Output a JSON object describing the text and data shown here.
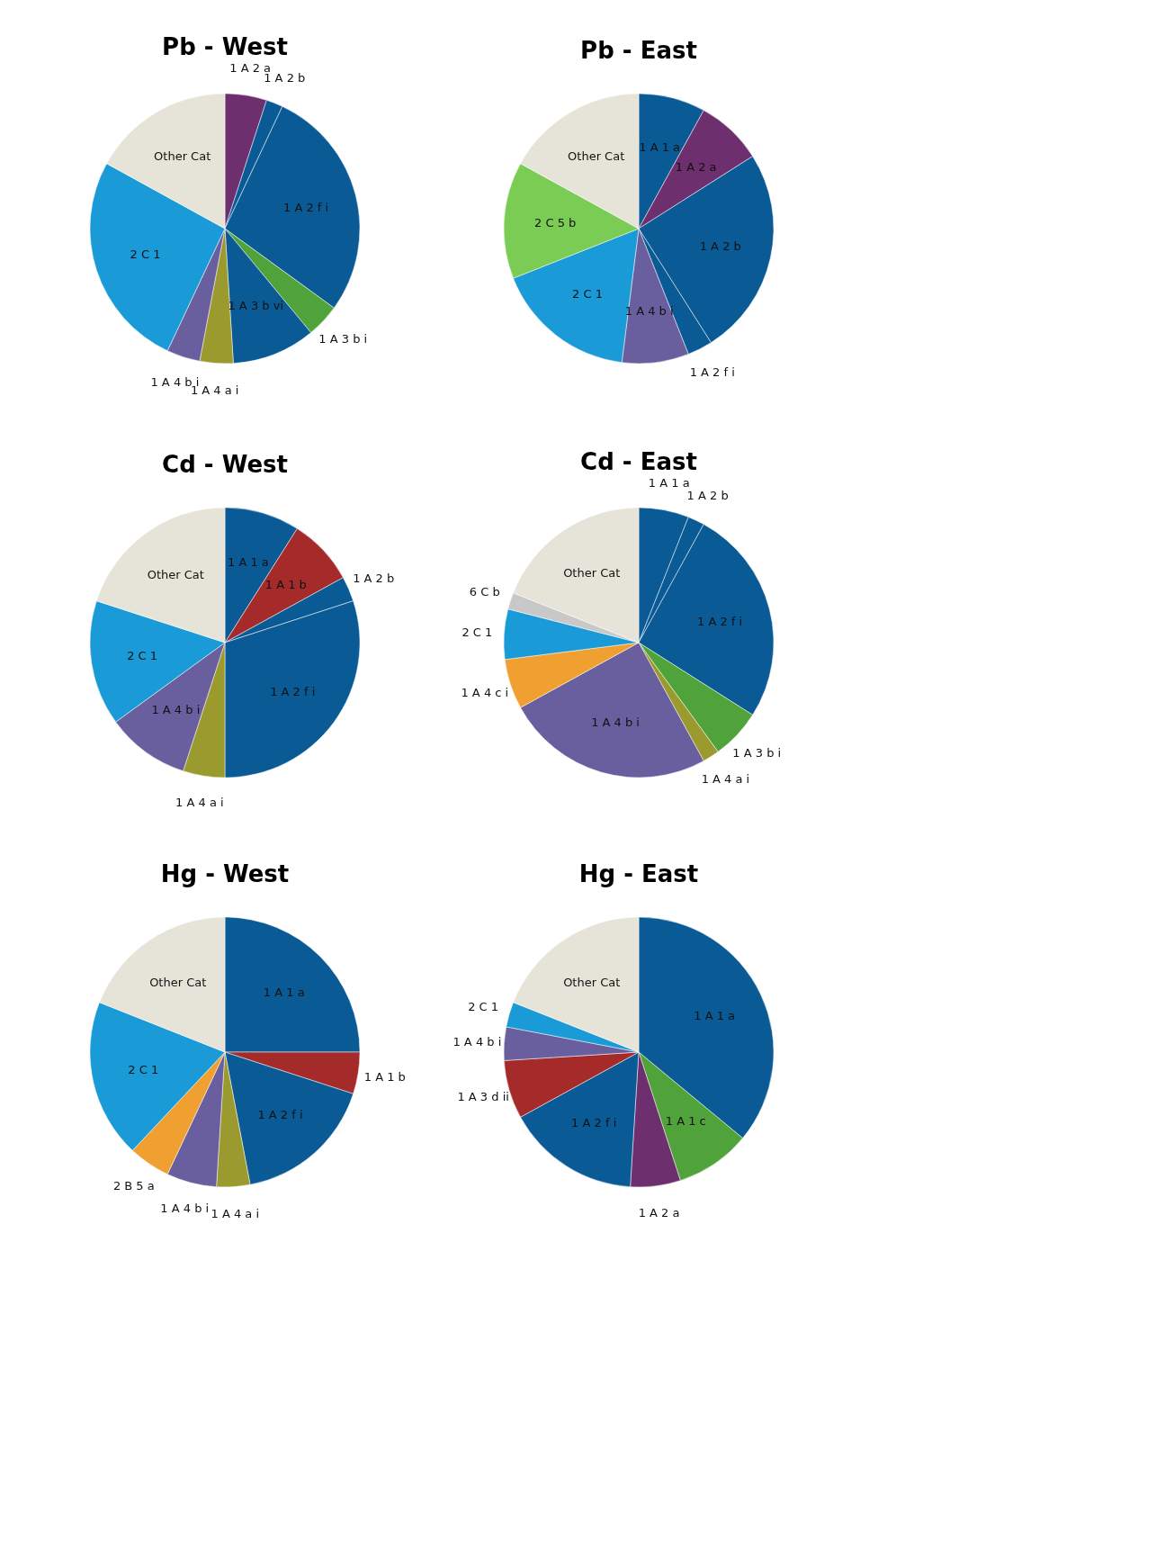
{
  "chart_data": [
    {
      "type": "pie",
      "title": "Pb - West",
      "categories": [
        "1 A 2 a",
        "1 A 2 b",
        "1 A 2 f i",
        "1 A 3 b i",
        "1 A 3 b vi",
        "1 A 4 a i",
        "1 A 4 b i",
        "2 C 1",
        "Other Cat"
      ],
      "values": [
        5,
        2,
        28,
        4,
        10,
        4,
        4,
        26,
        17
      ],
      "colors": [
        "#6e2f6e",
        "#0a5a96",
        "#0a5a96",
        "#4fa33a",
        "#0a5a96",
        "#9a9a2e",
        "#6a5f9e",
        "#1a9ad6",
        "#e6e4d8"
      ]
    },
    {
      "type": "pie",
      "title": "Pb - East",
      "categories": [
        "1 A 1 a",
        "1 A 2 a",
        "1 A 2 b",
        "1 A 2 f i",
        "1 A 4 b i",
        "2 C 1",
        "2 C 5 b",
        "Other Cat"
      ],
      "values": [
        8,
        8,
        25,
        3,
        8,
        17,
        14,
        17
      ],
      "colors": [
        "#0a5a96",
        "#6e2f6e",
        "#0a5a96",
        "#0a5a96",
        "#6a5f9e",
        "#1a9ad6",
        "#7acc55",
        "#e6e4d8"
      ]
    },
    {
      "type": "pie",
      "title": "Cd - West",
      "categories": [
        "1 A 1 a",
        "1 A 1 b",
        "1 A 2 b",
        "1 A 2 f i",
        "1 A 4 a i",
        "1 A 4 b i",
        "2 C 1",
        "Other Cat"
      ],
      "values": [
        9,
        8,
        3,
        30,
        5,
        10,
        15,
        20
      ],
      "colors": [
        "#0a5a96",
        "#a52a2a",
        "#0a5a96",
        "#0a5a96",
        "#9a9a2e",
        "#6a5f9e",
        "#1a9ad6",
        "#e6e4d8"
      ]
    },
    {
      "type": "pie",
      "title": "Cd - East",
      "categories": [
        "1 A 1 a",
        "1 A 2 b",
        "1 A 2 f i",
        "1 A 3 b i",
        "1 A 4 a i",
        "1 A 4 b i",
        "1 A 4 c i",
        "2 C 1",
        "6 C b",
        "Other Cat"
      ],
      "values": [
        6,
        2,
        26,
        6,
        2,
        25,
        6,
        6,
        2,
        19
      ],
      "colors": [
        "#0a5a96",
        "#0a5a96",
        "#0a5a96",
        "#4fa33a",
        "#9a9a2e",
        "#6a5f9e",
        "#f0a030",
        "#1a9ad6",
        "#c8c8c8",
        "#e6e4d8"
      ]
    },
    {
      "type": "pie",
      "title": "Hg - West",
      "categories": [
        "1 A 1 a",
        "1 A 1 b",
        "1 A 2 f i",
        "1 A 4 a i",
        "1 A 4 b i",
        "2 B 5 a",
        "2 C 1",
        "Other Cat"
      ],
      "values": [
        25,
        5,
        17,
        4,
        6,
        5,
        19,
        19
      ],
      "colors": [
        "#0a5a96",
        "#a52a2a",
        "#0a5a96",
        "#9a9a2e",
        "#6a5f9e",
        "#f0a030",
        "#1a9ad6",
        "#e6e4d8"
      ]
    },
    {
      "type": "pie",
      "title": "Hg - East",
      "categories": [
        "1 A 1 a",
        "1 A 1 c",
        "1 A 2 a",
        "1 A 2 f i",
        "1 A 3 d ii",
        "1 A 4 b i",
        "2 C 1",
        "Other Cat"
      ],
      "values": [
        36,
        9,
        6,
        16,
        7,
        4,
        3,
        19
      ],
      "colors": [
        "#0a5a96",
        "#4fa33a",
        "#6e2f6e",
        "#0a5a96",
        "#a52a2a",
        "#6a5f9e",
        "#1a9ad6",
        "#e6e4d8"
      ]
    }
  ]
}
